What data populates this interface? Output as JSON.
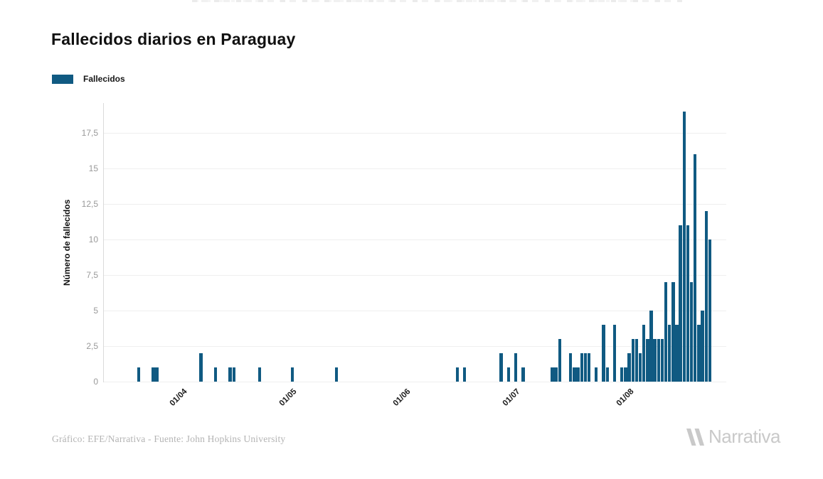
{
  "title": "Fallecidos diarios en Paraguay",
  "legend": {
    "label": "Fallecidos"
  },
  "footer": {
    "credit": "Gráfico: EFE/Narrativa - Fuente: John Hopkins University",
    "brand": "Narrativa"
  },
  "chart_data": {
    "type": "bar",
    "title": "Fallecidos diarios en Paraguay",
    "series_name": "Fallecidos",
    "xlabel": "",
    "ylabel": "Número de fallecidos",
    "bar_color": "#105a82",
    "grid": "horizontal",
    "legend_position": "top-left",
    "ylim": [
      0,
      19.6
    ],
    "x_start": "2020-03-11",
    "x_end": "2020-08-27",
    "y_ticks": [
      {
        "label": "0",
        "value": 0
      },
      {
        "label": "2,5",
        "value": 2.5
      },
      {
        "label": "5",
        "value": 5
      },
      {
        "label": "7,5",
        "value": 7.5
      },
      {
        "label": "10",
        "value": 10
      },
      {
        "label": "12,5",
        "value": 12.5
      },
      {
        "label": "15",
        "value": 15
      },
      {
        "label": "17,5",
        "value": 17.5
      }
    ],
    "x_ticks": [
      {
        "label": "01/04",
        "date": "2020-04-01"
      },
      {
        "label": "01/05",
        "date": "2020-05-01"
      },
      {
        "label": "01/06",
        "date": "2020-06-01"
      },
      {
        "label": "01/07",
        "date": "2020-07-01"
      },
      {
        "label": "01/08",
        "date": "2020-08-01"
      }
    ],
    "points": [
      {
        "date": "2020-03-20",
        "value": 1
      },
      {
        "date": "2020-03-24",
        "value": 1
      },
      {
        "date": "2020-03-25",
        "value": 1
      },
      {
        "date": "2020-04-06",
        "value": 2
      },
      {
        "date": "2020-04-10",
        "value": 1
      },
      {
        "date": "2020-04-14",
        "value": 1
      },
      {
        "date": "2020-04-15",
        "value": 1
      },
      {
        "date": "2020-04-22",
        "value": 1
      },
      {
        "date": "2020-05-01",
        "value": 1
      },
      {
        "date": "2020-05-13",
        "value": 1
      },
      {
        "date": "2020-06-15",
        "value": 1
      },
      {
        "date": "2020-06-17",
        "value": 1
      },
      {
        "date": "2020-06-27",
        "value": 2
      },
      {
        "date": "2020-06-29",
        "value": 1
      },
      {
        "date": "2020-07-01",
        "value": 2
      },
      {
        "date": "2020-07-03",
        "value": 1
      },
      {
        "date": "2020-07-11",
        "value": 1
      },
      {
        "date": "2020-07-12",
        "value": 1
      },
      {
        "date": "2020-07-13",
        "value": 3
      },
      {
        "date": "2020-07-16",
        "value": 2
      },
      {
        "date": "2020-07-17",
        "value": 1
      },
      {
        "date": "2020-07-18",
        "value": 1
      },
      {
        "date": "2020-07-19",
        "value": 2
      },
      {
        "date": "2020-07-20",
        "value": 2
      },
      {
        "date": "2020-07-21",
        "value": 2
      },
      {
        "date": "2020-07-23",
        "value": 1
      },
      {
        "date": "2020-07-25",
        "value": 4
      },
      {
        "date": "2020-07-26",
        "value": 1
      },
      {
        "date": "2020-07-28",
        "value": 4
      },
      {
        "date": "2020-07-30",
        "value": 1
      },
      {
        "date": "2020-07-31",
        "value": 1
      },
      {
        "date": "2020-08-01",
        "value": 2
      },
      {
        "date": "2020-08-02",
        "value": 3
      },
      {
        "date": "2020-08-03",
        "value": 3
      },
      {
        "date": "2020-08-04",
        "value": 2
      },
      {
        "date": "2020-08-05",
        "value": 4
      },
      {
        "date": "2020-08-06",
        "value": 3
      },
      {
        "date": "2020-08-07",
        "value": 5
      },
      {
        "date": "2020-08-08",
        "value": 3
      },
      {
        "date": "2020-08-09",
        "value": 3
      },
      {
        "date": "2020-08-10",
        "value": 3
      },
      {
        "date": "2020-08-11",
        "value": 7
      },
      {
        "date": "2020-08-12",
        "value": 4
      },
      {
        "date": "2020-08-13",
        "value": 7
      },
      {
        "date": "2020-08-14",
        "value": 4
      },
      {
        "date": "2020-08-15",
        "value": 11
      },
      {
        "date": "2020-08-16",
        "value": 19
      },
      {
        "date": "2020-08-17",
        "value": 11
      },
      {
        "date": "2020-08-18",
        "value": 7
      },
      {
        "date": "2020-08-19",
        "value": 16
      },
      {
        "date": "2020-08-20",
        "value": 4
      },
      {
        "date": "2020-08-21",
        "value": 5
      },
      {
        "date": "2020-08-22",
        "value": 12
      },
      {
        "date": "2020-08-23",
        "value": 10
      }
    ]
  }
}
